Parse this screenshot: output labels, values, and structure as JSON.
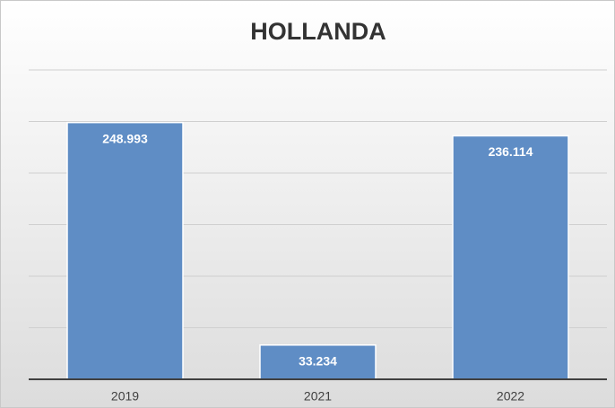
{
  "chart_data": {
    "type": "bar",
    "title": "HOLLANDA",
    "categories": [
      "2019",
      "2021",
      "2022"
    ],
    "values": [
      248993,
      33234,
      236114
    ],
    "value_labels": [
      "248.993",
      "33.234",
      "236.114"
    ],
    "color": "#5f8dc5",
    "ylim": [
      0,
      300000
    ],
    "yticks": [
      0,
      50000,
      100000,
      150000,
      200000,
      250000,
      300000
    ],
    "grid": true
  }
}
